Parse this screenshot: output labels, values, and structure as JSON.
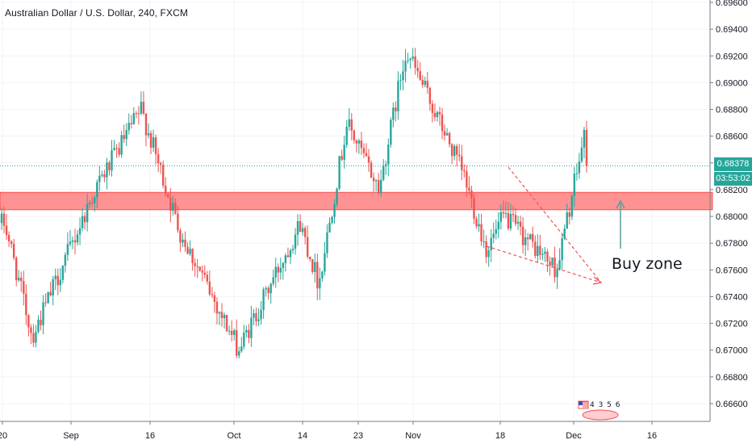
{
  "chart_title": "Australian Dollar / U.S. Dollar, 240, FXCM",
  "annotation_text": "Buy zone",
  "current_price": "0.68378",
  "countdown": "03:53:02",
  "badge_text": "4 3 5 6",
  "colors": {
    "up": "#26a69a",
    "down": "#ef5350",
    "zone_fill": "#ff8080",
    "zone_border": "#ff4d4d",
    "arrow": "#5b9e9a",
    "wedge": "#ef5350",
    "grid": "#f0f3fa",
    "axis_text": "#131722",
    "price_line": "#26a69a"
  },
  "chart_data": {
    "type": "candlestick",
    "title": "Australian Dollar / U.S. Dollar, 240, FXCM",
    "symbol": "AUDUSD",
    "interval": "240",
    "source": "FXCM",
    "y_ticks": [
      "0.69600",
      "0.69400",
      "0.69200",
      "0.69000",
      "0.68800",
      "0.68600",
      "0.68400",
      "0.68200",
      "0.68000",
      "0.67800",
      "0.67600",
      "0.67400",
      "0.67200",
      "0.67000",
      "0.66800",
      "0.66600"
    ],
    "ylim": [
      0.665,
      0.696
    ],
    "x_ticks": [
      "20",
      "Sep",
      "16",
      "Oct",
      "14",
      "23",
      "Nov",
      "18",
      "Dec",
      "16"
    ],
    "grid": true,
    "last_price": 0.68378,
    "zone": {
      "low": 0.6805,
      "high": 0.6818,
      "label": "Buy zone"
    },
    "pattern": "falling wedge",
    "series_points": [
      {
        "t": "20",
        "close": 0.6795
      },
      {
        "t": "Sep",
        "close": 0.671
      },
      {
        "t": "mid-Sep",
        "close": 0.682
      },
      {
        "t": "16",
        "close": 0.688
      },
      {
        "t": "late-Sep",
        "close": 0.679
      },
      {
        "t": "Oct",
        "close": 0.67
      },
      {
        "t": "14",
        "close": 0.6795
      },
      {
        "t": "mid-Oct",
        "close": 0.675
      },
      {
        "t": "23",
        "close": 0.687
      },
      {
        "t": "late-Oct",
        "close": 0.682
      },
      {
        "t": "Nov",
        "close": 0.6925
      },
      {
        "t": "early-Nov",
        "close": 0.689
      },
      {
        "t": "mid-Nov",
        "close": 0.683
      },
      {
        "t": "18",
        "close": 0.6775
      },
      {
        "t": "late-Nov",
        "close": 0.68
      },
      {
        "t": "end-Nov",
        "close": 0.676
      },
      {
        "t": "Dec",
        "close": 0.686
      },
      {
        "t": "Dec-now",
        "close": 0.68378
      }
    ]
  }
}
